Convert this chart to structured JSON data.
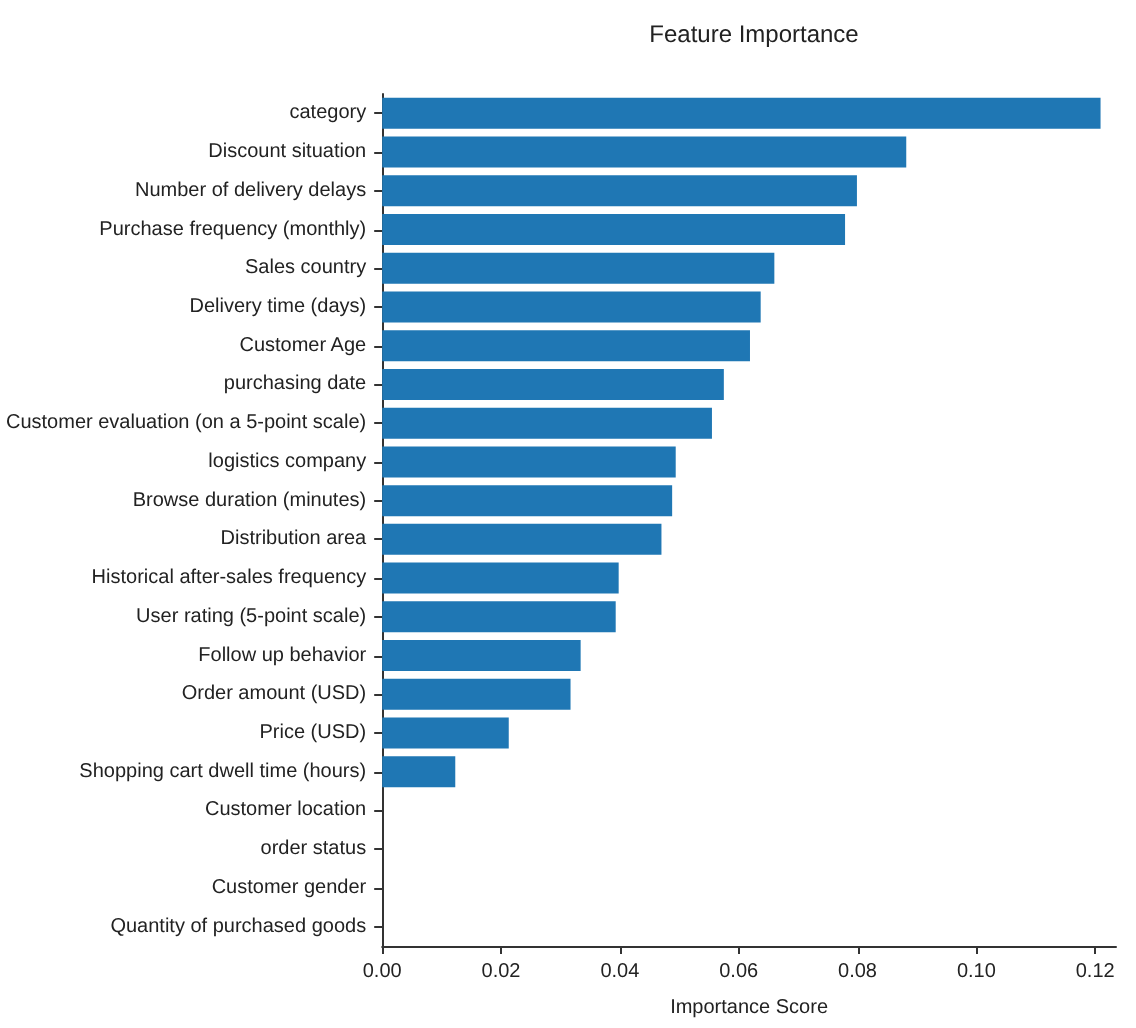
{
  "chart_data": {
    "type": "bar",
    "title": "Feature Importance",
    "xlabel": "Importance Score",
    "orientation": "horizontal",
    "categories": [
      "category",
      "Discount situation",
      "Number of delivery delays",
      "Purchase frequency (monthly)",
      "Sales country",
      "Delivery time (days)",
      "Customer Age",
      "purchasing date",
      "Customer evaluation (on a 5-point scale)",
      "logistics company",
      "Browse duration (minutes)",
      "Distribution area",
      "Historical after-sales frequency",
      "User rating (5-point scale)",
      "Follow up behavior",
      "Order amount (USD)",
      "Price (USD)",
      "Shopping cart dwell time (hours)",
      "Customer location",
      "order status",
      "Customer gender",
      "Quantity of purchased goods"
    ],
    "values": [
      0.1209,
      0.0882,
      0.0799,
      0.0779,
      0.066,
      0.0637,
      0.0619,
      0.0575,
      0.0555,
      0.0494,
      0.0488,
      0.047,
      0.0398,
      0.0393,
      0.0334,
      0.0317,
      0.0213,
      0.0123,
      0,
      0,
      0,
      0
    ],
    "color": "#1f77b4",
    "xlim": [
      0,
      0.1235
    ],
    "xticks": [
      {
        "value": 0,
        "label": "0.00"
      },
      {
        "value": 0.02,
        "label": "0.02"
      },
      {
        "value": 0.04,
        "label": "0.04"
      },
      {
        "value": 0.06,
        "label": "0.06"
      },
      {
        "value": 0.08,
        "label": "0.08"
      },
      {
        "value": 0.1,
        "label": "0.10"
      },
      {
        "value": 0.12,
        "label": "0.12"
      }
    ],
    "grid": false
  }
}
